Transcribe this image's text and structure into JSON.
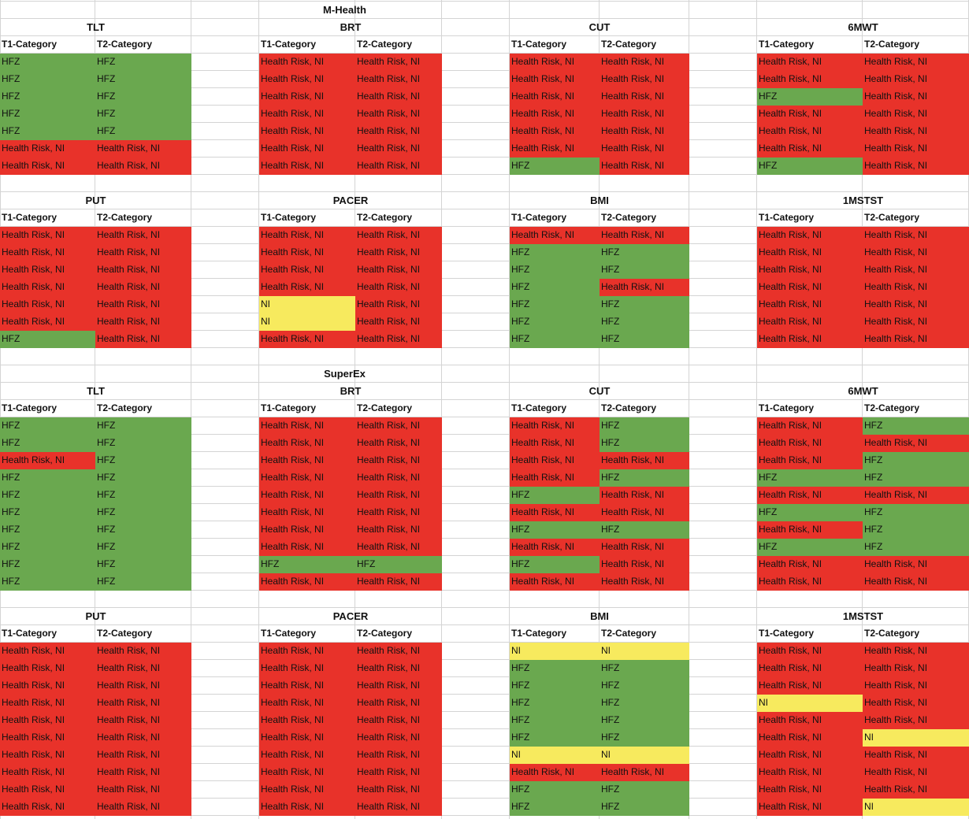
{
  "colors": {
    "red": "#e8322a",
    "green": "#6aa84f",
    "yellow": "#f7ea5e"
  },
  "legend_codes": {
    "R": "Health Risk, NI",
    "G": "HFZ",
    "Y": "NI"
  },
  "sections": [
    {
      "title": "M-Health",
      "groups": [
        {
          "tests": [
            {
              "name": "TLT",
              "t1_header": "T1-Category",
              "t2_header": "T2-Category",
              "rows": [
                [
                  "HFZ",
                  "HFZ"
                ],
                [
                  "HFZ",
                  "HFZ"
                ],
                [
                  "HFZ",
                  "HFZ"
                ],
                [
                  "HFZ",
                  "HFZ"
                ],
                [
                  "HFZ",
                  "HFZ"
                ],
                [
                  "Health Risk, NI",
                  "Health Risk, NI"
                ],
                [
                  "Health Risk, NI",
                  "Health Risk, NI"
                ]
              ]
            },
            {
              "name": "BRT",
              "t1_header": "T1-Category",
              "t2_header": "T2-Category",
              "rows": [
                [
                  "Health Risk, NI",
                  "Health Risk, NI"
                ],
                [
                  "Health Risk, NI",
                  "Health Risk, NI"
                ],
                [
                  "Health Risk, NI",
                  "Health Risk, NI"
                ],
                [
                  "Health Risk, NI",
                  "Health Risk, NI"
                ],
                [
                  "Health Risk, NI",
                  "Health Risk, NI"
                ],
                [
                  "Health Risk, NI",
                  "Health Risk, NI"
                ],
                [
                  "Health Risk, NI",
                  "Health Risk, NI"
                ]
              ]
            },
            {
              "name": "CUT",
              "t1_header": "T1-Category",
              "t2_header": "T2-Category",
              "rows": [
                [
                  "Health Risk, NI",
                  "Health Risk, NI"
                ],
                [
                  "Health Risk, NI",
                  "Health Risk, NI"
                ],
                [
                  "Health Risk, NI",
                  "Health Risk, NI"
                ],
                [
                  "Health Risk, NI",
                  "Health Risk, NI"
                ],
                [
                  "Health Risk, NI",
                  "Health Risk, NI"
                ],
                [
                  "Health Risk, NI",
                  "Health Risk, NI"
                ],
                [
                  "HFZ",
                  "Health Risk, NI"
                ]
              ]
            },
            {
              "name": "6MWT",
              "t1_header": "T1-Category",
              "t2_header": "T2-Category",
              "rows": [
                [
                  "Health Risk, NI",
                  "Health Risk, NI"
                ],
                [
                  "Health Risk, NI",
                  "Health Risk, NI"
                ],
                [
                  "HFZ",
                  "Health Risk, NI"
                ],
                [
                  "Health Risk, NI",
                  "Health Risk, NI"
                ],
                [
                  "Health Risk, NI",
                  "Health Risk, NI"
                ],
                [
                  "Health Risk, NI",
                  "Health Risk, NI"
                ],
                [
                  "HFZ",
                  "Health Risk, NI"
                ]
              ]
            }
          ]
        },
        {
          "tests": [
            {
              "name": "PUT",
              "t1_header": "T1-Category",
              "t2_header": "T2-Category",
              "rows": [
                [
                  "Health Risk, NI",
                  "Health Risk, NI"
                ],
                [
                  "Health Risk, NI",
                  "Health Risk, NI"
                ],
                [
                  "Health Risk, NI",
                  "Health Risk, NI"
                ],
                [
                  "Health Risk, NI",
                  "Health Risk, NI"
                ],
                [
                  "Health Risk, NI",
                  "Health Risk, NI"
                ],
                [
                  "Health Risk, NI",
                  "Health Risk, NI"
                ],
                [
                  "HFZ",
                  "Health Risk, NI"
                ]
              ]
            },
            {
              "name": "PACER",
              "t1_header": "T1-Category",
              "t2_header": "T2-Category",
              "rows": [
                [
                  "Health Risk, NI",
                  "Health Risk, NI"
                ],
                [
                  "Health Risk, NI",
                  "Health Risk, NI"
                ],
                [
                  "Health Risk, NI",
                  "Health Risk, NI"
                ],
                [
                  "Health Risk, NI",
                  "Health Risk, NI"
                ],
                [
                  "NI",
                  "Health Risk, NI"
                ],
                [
                  "NI",
                  "Health Risk, NI"
                ],
                [
                  "Health Risk, NI",
                  "Health Risk, NI"
                ]
              ]
            },
            {
              "name": "BMI",
              "t1_header": "T1-Category",
              "t2_header": "T2-Category",
              "rows": [
                [
                  "Health Risk, NI",
                  "Health Risk, NI"
                ],
                [
                  "HFZ",
                  "HFZ"
                ],
                [
                  "HFZ",
                  "HFZ"
                ],
                [
                  "HFZ",
                  "Health Risk, NI"
                ],
                [
                  "HFZ",
                  "HFZ"
                ],
                [
                  "HFZ",
                  "HFZ"
                ],
                [
                  "HFZ",
                  "HFZ"
                ]
              ]
            },
            {
              "name": "1MSTST",
              "t1_header": "T1-Category",
              "t2_header": "T2-Category",
              "rows": [
                [
                  "Health Risk, NI",
                  "Health Risk, NI"
                ],
                [
                  "Health Risk, NI",
                  "Health Risk, NI"
                ],
                [
                  "Health Risk, NI",
                  "Health Risk, NI"
                ],
                [
                  "Health Risk, NI",
                  "Health Risk, NI"
                ],
                [
                  "Health Risk, NI",
                  "Health Risk, NI"
                ],
                [
                  "Health Risk, NI",
                  "Health Risk, NI"
                ],
                [
                  "Health Risk, NI",
                  "Health Risk, NI"
                ]
              ]
            }
          ]
        }
      ]
    },
    {
      "title": "SuperEx",
      "groups": [
        {
          "tests": [
            {
              "name": "TLT",
              "t1_header": "T1-Category",
              "t2_header": "T2-Category",
              "rows": [
                [
                  "HFZ",
                  "HFZ"
                ],
                [
                  "HFZ",
                  "HFZ"
                ],
                [
                  "Health Risk, NI",
                  "HFZ"
                ],
                [
                  "HFZ",
                  "HFZ"
                ],
                [
                  "HFZ",
                  "HFZ"
                ],
                [
                  "HFZ",
                  "HFZ"
                ],
                [
                  "HFZ",
                  "HFZ"
                ],
                [
                  "HFZ",
                  "HFZ"
                ],
                [
                  "HFZ",
                  "HFZ"
                ],
                [
                  "HFZ",
                  "HFZ"
                ]
              ]
            },
            {
              "name": "BRT",
              "t1_header": "T1-Category",
              "t2_header": "T2-Category",
              "rows": [
                [
                  "Health Risk, NI",
                  "Health Risk, NI"
                ],
                [
                  "Health Risk, NI",
                  "Health Risk, NI"
                ],
                [
                  "Health Risk, NI",
                  "Health Risk, NI"
                ],
                [
                  "Health Risk, NI",
                  "Health Risk, NI"
                ],
                [
                  "Health Risk, NI",
                  "Health Risk, NI"
                ],
                [
                  "Health Risk, NI",
                  "Health Risk, NI"
                ],
                [
                  "Health Risk, NI",
                  "Health Risk, NI"
                ],
                [
                  "Health Risk, NI",
                  "Health Risk, NI"
                ],
                [
                  "HFZ",
                  "HFZ"
                ],
                [
                  "Health Risk, NI",
                  "Health Risk, NI"
                ]
              ]
            },
            {
              "name": "CUT",
              "t1_header": "T1-Category",
              "t2_header": "T2-Category",
              "rows": [
                [
                  "Health Risk, NI",
                  "HFZ"
                ],
                [
                  "Health Risk, NI",
                  "HFZ"
                ],
                [
                  "Health Risk, NI",
                  "Health Risk, NI"
                ],
                [
                  "Health Risk, NI",
                  "HFZ"
                ],
                [
                  "HFZ",
                  "Health Risk, NI"
                ],
                [
                  "Health Risk, NI",
                  "Health Risk, NI"
                ],
                [
                  "HFZ",
                  "HFZ"
                ],
                [
                  "Health Risk, NI",
                  "Health Risk, NI"
                ],
                [
                  "HFZ",
                  "Health Risk, NI"
                ],
                [
                  "Health Risk, NI",
                  "Health Risk, NI"
                ]
              ]
            },
            {
              "name": "6MWT",
              "t1_header": "T1-Category",
              "t2_header": "T2-Category",
              "rows": [
                [
                  "Health Risk, NI",
                  "HFZ"
                ],
                [
                  "Health Risk, NI",
                  "Health Risk, NI"
                ],
                [
                  "Health Risk, NI",
                  "HFZ"
                ],
                [
                  "HFZ",
                  "HFZ"
                ],
                [
                  "Health Risk, NI",
                  "Health Risk, NI"
                ],
                [
                  "HFZ",
                  "HFZ"
                ],
                [
                  "Health Risk, NI",
                  "HFZ"
                ],
                [
                  "HFZ",
                  "HFZ"
                ],
                [
                  "Health Risk, NI",
                  "Health Risk, NI"
                ],
                [
                  "Health Risk, NI",
                  "Health Risk, NI"
                ]
              ]
            }
          ]
        },
        {
          "tests": [
            {
              "name": "PUT",
              "t1_header": "T1-Category",
              "t2_header": "T2-Category",
              "rows": [
                [
                  "Health Risk, NI",
                  "Health Risk, NI"
                ],
                [
                  "Health Risk, NI",
                  "Health Risk, NI"
                ],
                [
                  "Health Risk, NI",
                  "Health Risk, NI"
                ],
                [
                  "Health Risk, NI",
                  "Health Risk, NI"
                ],
                [
                  "Health Risk, NI",
                  "Health Risk, NI"
                ],
                [
                  "Health Risk, NI",
                  "Health Risk, NI"
                ],
                [
                  "Health Risk, NI",
                  "Health Risk, NI"
                ],
                [
                  "Health Risk, NI",
                  "Health Risk, NI"
                ],
                [
                  "Health Risk, NI",
                  "Health Risk, NI"
                ],
                [
                  "Health Risk, NI",
                  "Health Risk, NI"
                ]
              ]
            },
            {
              "name": "PACER",
              "t1_header": "T1-Category",
              "t2_header": "T2-Category",
              "rows": [
                [
                  "Health Risk, NI",
                  "Health Risk, NI"
                ],
                [
                  "Health Risk, NI",
                  "Health Risk, NI"
                ],
                [
                  "Health Risk, NI",
                  "Health Risk, NI"
                ],
                [
                  "Health Risk, NI",
                  "Health Risk, NI"
                ],
                [
                  "Health Risk, NI",
                  "Health Risk, NI"
                ],
                [
                  "Health Risk, NI",
                  "Health Risk, NI"
                ],
                [
                  "Health Risk, NI",
                  "Health Risk, NI"
                ],
                [
                  "Health Risk, NI",
                  "Health Risk, NI"
                ],
                [
                  "Health Risk, NI",
                  "Health Risk, NI"
                ],
                [
                  "Health Risk, NI",
                  "Health Risk, NI"
                ]
              ]
            },
            {
              "name": "BMI",
              "t1_header": "T1-Category",
              "t2_header": "T2-Category",
              "rows": [
                [
                  "NI",
                  "NI"
                ],
                [
                  "HFZ",
                  "HFZ"
                ],
                [
                  "HFZ",
                  "HFZ"
                ],
                [
                  "HFZ",
                  "HFZ"
                ],
                [
                  "HFZ",
                  "HFZ"
                ],
                [
                  "HFZ",
                  "HFZ"
                ],
                [
                  "NI",
                  "NI"
                ],
                [
                  "Health Risk, NI",
                  "Health Risk, NI"
                ],
                [
                  "HFZ",
                  "HFZ"
                ],
                [
                  "HFZ",
                  "HFZ"
                ]
              ]
            },
            {
              "name": "1MSTST",
              "t1_header": "T1-Category",
              "t2_header": "T2-Category",
              "rows": [
                [
                  "Health Risk, NI",
                  "Health Risk, NI"
                ],
                [
                  "Health Risk, NI",
                  "Health Risk, NI"
                ],
                [
                  "Health Risk, NI",
                  "Health Risk, NI"
                ],
                [
                  "NI",
                  "Health Risk, NI"
                ],
                [
                  "Health Risk, NI",
                  "Health Risk, NI"
                ],
                [
                  "Health Risk, NI",
                  "NI"
                ],
                [
                  "Health Risk, NI",
                  "Health Risk, NI"
                ],
                [
                  "Health Risk, NI",
                  "Health Risk, NI"
                ],
                [
                  "Health Risk, NI",
                  "Health Risk, NI"
                ],
                [
                  "Health Risk, NI",
                  "NI"
                ]
              ]
            }
          ]
        }
      ]
    }
  ]
}
